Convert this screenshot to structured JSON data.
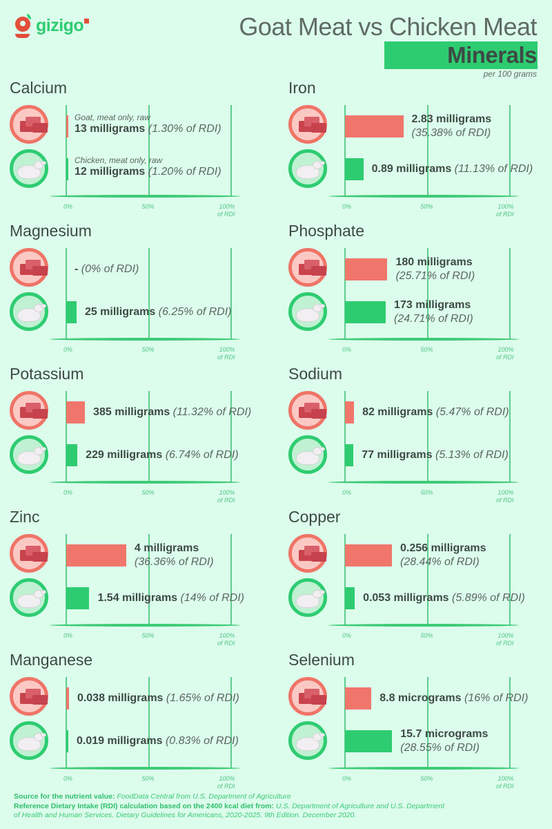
{
  "header": {
    "logo_text": "gizigo",
    "title": "Goat Meat vs Chicken Meat",
    "subtitle": "Minerals",
    "unit_note": "per 100 grams"
  },
  "colors": {
    "background": "#dcfcec",
    "goat": "#f0766b",
    "chicken": "#2ecc71",
    "text": "#3d4a44"
  },
  "axis": {
    "tick_0": "0%",
    "tick_50": "50%",
    "tick_100_line1": "100%",
    "tick_100_line2": "of RDI"
  },
  "panels": [
    {
      "name": "Calcium",
      "goat": {
        "food": "Goat, meat only, raw",
        "amount": "13 milligrams",
        "rdi": "(1.30% of RDI)",
        "pct": 1.3
      },
      "chicken": {
        "food": "Chicken, meat only, raw",
        "amount": "12 milligrams",
        "rdi": "(1.20% of RDI)",
        "pct": 1.2
      }
    },
    {
      "name": "Iron",
      "goat": {
        "amount": "2.83 milligrams",
        "rdi": "(35.38% of RDI)",
        "pct": 35.38
      },
      "chicken": {
        "amount": "0.89 milligrams",
        "rdi": "(11.13% of RDI)",
        "pct": 11.13
      }
    },
    {
      "name": "Magnesium",
      "goat": {
        "amount": "-",
        "rdi": "(0% of RDI)",
        "pct": 0
      },
      "chicken": {
        "amount": "25 milligrams",
        "rdi": "(6.25% of RDI)",
        "pct": 6.25
      }
    },
    {
      "name": "Phosphate",
      "goat": {
        "amount": "180 milligrams",
        "rdi": "(25.71% of RDI)",
        "pct": 25.71
      },
      "chicken": {
        "amount": "173 milligrams",
        "rdi": "(24.71% of RDI)",
        "pct": 24.71
      }
    },
    {
      "name": "Potassium",
      "goat": {
        "amount": "385 milligrams",
        "rdi": "(11.32% of RDI)",
        "pct": 11.32
      },
      "chicken": {
        "amount": "229 milligrams",
        "rdi": "(6.74% of RDI)",
        "pct": 6.74
      }
    },
    {
      "name": "Sodium",
      "goat": {
        "amount": "82 milligrams",
        "rdi": "(5.47% of RDI)",
        "pct": 5.47
      },
      "chicken": {
        "amount": "77 milligrams",
        "rdi": "(5.13% of RDI)",
        "pct": 5.13
      }
    },
    {
      "name": "Zinc",
      "goat": {
        "amount": "4 milligrams",
        "rdi": "(36.36% of RDI)",
        "pct": 36.36
      },
      "chicken": {
        "amount": "1.54 milligrams",
        "rdi": "(14% of RDI)",
        "pct": 14
      }
    },
    {
      "name": "Copper",
      "goat": {
        "amount": "0.256 milligrams",
        "rdi": "(28.44% of RDI)",
        "pct": 28.44
      },
      "chicken": {
        "amount": "0.053 milligrams",
        "rdi": "(5.89% of RDI)",
        "pct": 5.89
      }
    },
    {
      "name": "Manganese",
      "goat": {
        "amount": "0.038 milligrams",
        "rdi": "(1.65% of RDI)",
        "pct": 1.65
      },
      "chicken": {
        "amount": "0.019 milligrams",
        "rdi": "(0.83% of RDI)",
        "pct": 0.83
      }
    },
    {
      "name": "Selenium",
      "goat": {
        "amount": "8.8 micrograms",
        "rdi": "(16% of RDI)",
        "pct": 16
      },
      "chicken": {
        "amount": "15.7 micrograms",
        "rdi": "(28.55% of RDI)",
        "pct": 28.55
      }
    }
  ],
  "footer": {
    "source_label": "Source for the nutrient value:",
    "source_text": "FoodData Central from U.S. Department of Agriculture",
    "rdi_label": "Reference Dietary Intake (RDI) calculation based on the 2400 kcal diet from:",
    "rdi_text_1": "U.S. Department of Agriculture and U.S. Department",
    "rdi_text_2": "of Health and Human Services. Dietary Guidelines for Americans, 2020-2025. 9th Edition. December 2020."
  },
  "chart_data": {
    "type": "bar",
    "title": "Goat Meat vs Chicken Meat — Minerals (per 100 grams)",
    "xlabel": "% of RDI",
    "ylabel": "",
    "xlim": [
      0,
      100
    ],
    "ticks": [
      "0%",
      "50%",
      "100% of RDI"
    ],
    "orientation": "horizontal",
    "categories": [
      "Calcium",
      "Iron",
      "Magnesium",
      "Phosphate",
      "Potassium",
      "Sodium",
      "Zinc",
      "Copper",
      "Manganese",
      "Selenium"
    ],
    "series": [
      {
        "name": "Goat, meat only, raw",
        "color": "#f0766b",
        "values": [
          1.3,
          35.38,
          0,
          25.71,
          11.32,
          5.47,
          36.36,
          28.44,
          1.65,
          16
        ],
        "amounts": [
          "13 mg",
          "2.83 mg",
          "-",
          "180 mg",
          "385 mg",
          "82 mg",
          "4 mg",
          "0.256 mg",
          "0.038 mg",
          "8.8 µg"
        ]
      },
      {
        "name": "Chicken, meat only, raw",
        "color": "#2ecc71",
        "values": [
          1.2,
          11.13,
          6.25,
          24.71,
          6.74,
          5.13,
          14,
          5.89,
          0.83,
          28.55
        ],
        "amounts": [
          "12 mg",
          "0.89 mg",
          "25 mg",
          "173 mg",
          "229 mg",
          "77 mg",
          "1.54 mg",
          "0.053 mg",
          "0.019 mg",
          "15.7 µg"
        ]
      }
    ],
    "legend": "icons (goat meat / chicken)",
    "grid": true
  }
}
